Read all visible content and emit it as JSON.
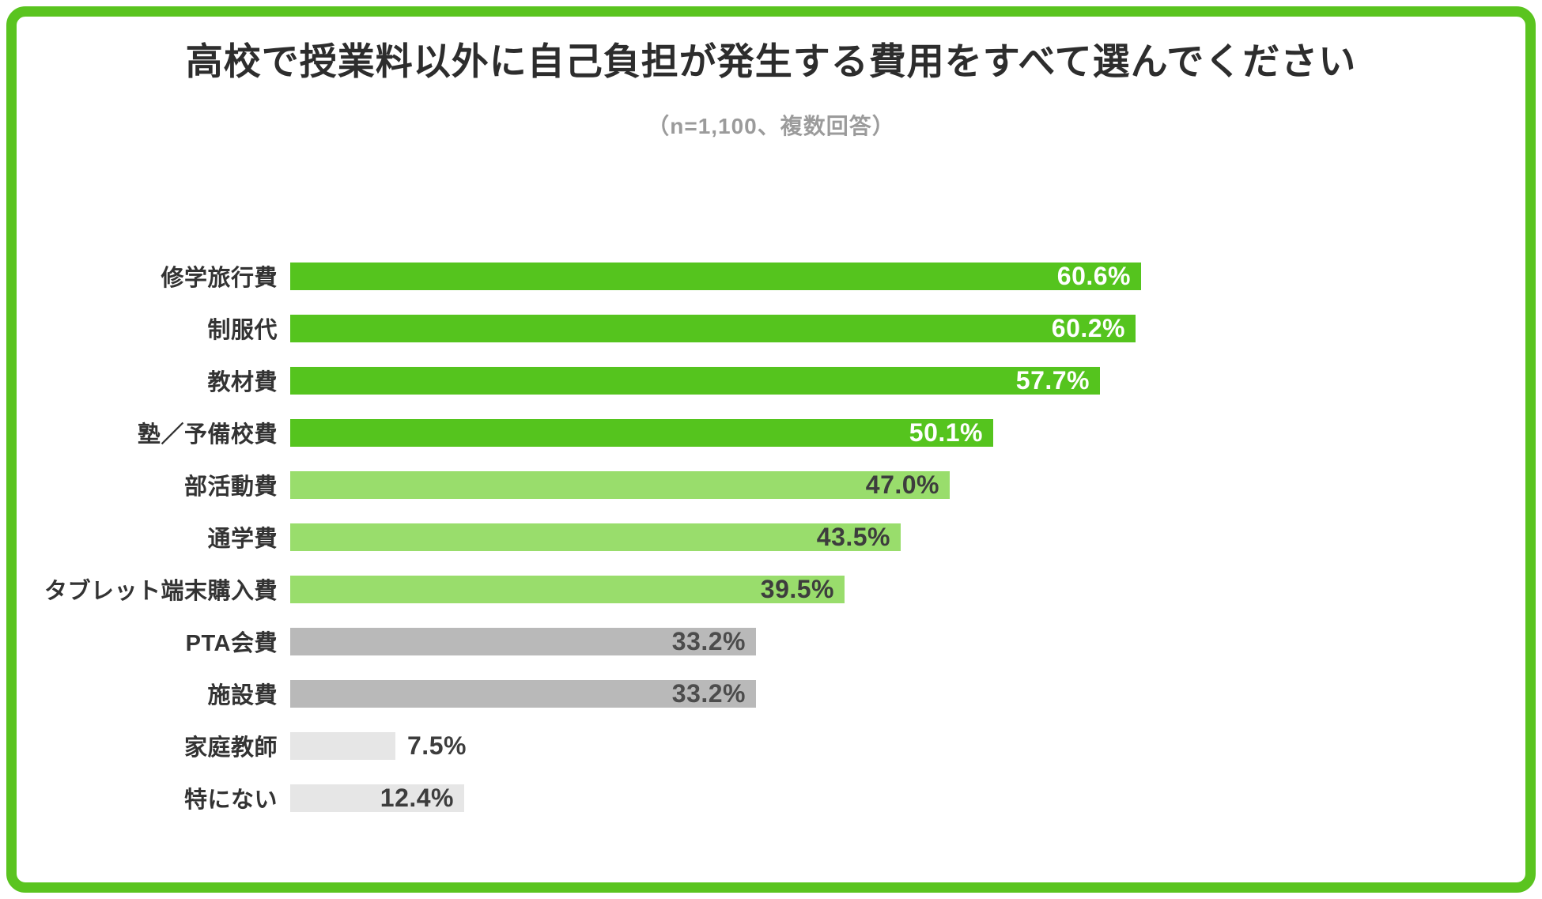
{
  "card": {
    "border_color": "#5ac41f",
    "background_color": "#ffffff"
  },
  "header": {
    "title": "高校で授業料以外に自己負担が発生する費用をすべて選んでください",
    "subtitle": "（n=1,100、複数回答）"
  },
  "chart_data": {
    "type": "bar",
    "orientation": "horizontal",
    "title": "高校で授業料以外に自己負担が発生する費用をすべて選んでください",
    "note": "（n=1,100、複数回答）",
    "categories": [
      "修学旅行費",
      "制服代",
      "教材費",
      "塾／予備校費",
      "部活動費",
      "通学費",
      "タブレット端末購入費",
      "PTA会費",
      "施設費",
      "家庭教師",
      "特にない"
    ],
    "values": [
      60.6,
      60.2,
      57.7,
      50.1,
      47.0,
      43.5,
      39.5,
      33.2,
      33.2,
      7.5,
      12.4
    ],
    "value_labels": [
      "60.6%",
      "60.2%",
      "57.7%",
      "50.1%",
      "47.0%",
      "43.5%",
      "39.5%",
      "33.2%",
      "33.2%",
      "7.5%",
      "12.4%"
    ],
    "bar_color_groups": [
      "dark_green",
      "dark_green",
      "dark_green",
      "dark_green",
      "light_green",
      "light_green",
      "light_green",
      "gray",
      "gray",
      "light_gray",
      "light_gray"
    ],
    "palette": {
      "dark_green": "#55c41e",
      "light_green": "#99dd6c",
      "gray": "#b9b9b9",
      "light_gray": "#e6e6e6"
    },
    "value_text_colors": {
      "dark_green": "#ffffff",
      "light_green": "#3d3d3d",
      "gray": "#4c4c4c",
      "light_gray": "#3d3d3d"
    },
    "value_label_outside_indices": [
      9
    ],
    "xlim": [
      0,
      88
    ],
    "grid": false,
    "legend": false,
    "xlabel": "",
    "ylabel": ""
  }
}
